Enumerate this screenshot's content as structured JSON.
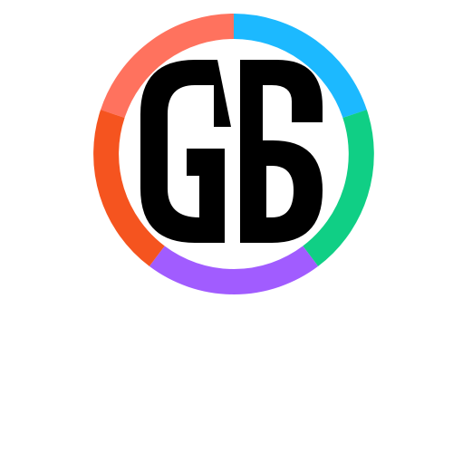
{
  "logo": {
    "monogram": "GS",
    "ring_colors": {
      "coral": "#FF725E",
      "sky": "#1CB9FF",
      "green": "#10CF85",
      "purple": "#A15CFF",
      "orange": "#F5541F"
    },
    "letter_color": "#000000",
    "background": "#FFFFFF"
  }
}
